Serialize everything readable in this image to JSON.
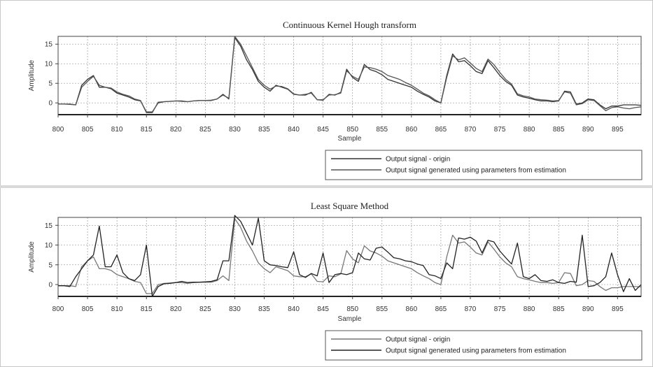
{
  "chart_data": [
    {
      "type": "line",
      "title": "Continuous Kernel Hough transform",
      "xlabel": "Sample",
      "ylabel": "Amplitude",
      "xlim": [
        800,
        899
      ],
      "ylim": [
        -3,
        17
      ],
      "x_ticks": [
        800,
        805,
        810,
        815,
        820,
        825,
        830,
        835,
        840,
        845,
        850,
        855,
        860,
        865,
        870,
        875,
        880,
        885,
        890,
        895
      ],
      "y_ticks": [
        0,
        5,
        10,
        15
      ],
      "grid": true,
      "legend_position": "bottom-right",
      "x": [
        800,
        801,
        802,
        803,
        804,
        805,
        806,
        807,
        808,
        809,
        810,
        811,
        812,
        813,
        814,
        815,
        816,
        817,
        818,
        819,
        820,
        821,
        822,
        823,
        824,
        825,
        826,
        827,
        828,
        829,
        830,
        831,
        832,
        833,
        834,
        835,
        836,
        837,
        838,
        839,
        840,
        841,
        842,
        843,
        844,
        845,
        846,
        847,
        848,
        849,
        850,
        851,
        852,
        853,
        854,
        855,
        856,
        857,
        858,
        859,
        860,
        861,
        862,
        863,
        864,
        865,
        866,
        867,
        868,
        869,
        870,
        871,
        872,
        873,
        874,
        875,
        876,
        877,
        878,
        879,
        880,
        881,
        882,
        883,
        884,
        885,
        886,
        887,
        888,
        889,
        890,
        891,
        892,
        893,
        894,
        895,
        896,
        897,
        898,
        899
      ],
      "series": [
        {
          "name": "Output signal - origin",
          "color": "#333333",
          "values": [
            -0.3,
            -0.3,
            -0.3,
            -0.5,
            4.5,
            6.0,
            7.0,
            4.0,
            4.0,
            3.6,
            2.5,
            2.0,
            1.5,
            0.8,
            0.5,
            -2.3,
            -2.3,
            0.0,
            0.3,
            0.4,
            0.5,
            0.5,
            0.3,
            0.5,
            0.6,
            0.6,
            0.6,
            1.0,
            2.2,
            1.0,
            16.7,
            14.5,
            11.0,
            8.5,
            5.5,
            4.0,
            3.0,
            4.5,
            4.0,
            3.5,
            2.2,
            2.0,
            2.0,
            2.7,
            0.8,
            0.7,
            2.2,
            2.0,
            2.7,
            8.6,
            6.5,
            5.5,
            9.8,
            8.5,
            8.0,
            7.2,
            6.0,
            5.5,
            5.0,
            4.5,
            4.0,
            3.0,
            2.2,
            1.5,
            0.5,
            0.0,
            7.0,
            12.5,
            10.5,
            10.8,
            9.5,
            8.0,
            7.5,
            10.8,
            9.0,
            7.0,
            5.5,
            4.5,
            2.0,
            1.5,
            1.2,
            0.8,
            0.5,
            0.5,
            0.3,
            0.5,
            3.0,
            2.8,
            -0.3,
            0.0,
            1.0,
            0.8,
            -0.5,
            -1.5,
            -0.8,
            -0.8,
            -0.5,
            -0.5,
            -0.5,
            -0.6
          ]
        },
        {
          "name": "Output signal generated using parameters from estimation",
          "color": "#555555",
          "values": [
            -0.3,
            -0.3,
            -0.4,
            -0.5,
            4.0,
            5.5,
            6.8,
            4.5,
            4.0,
            3.8,
            2.8,
            2.2,
            1.8,
            1.0,
            0.6,
            -2.5,
            -2.5,
            0.2,
            0.3,
            0.4,
            0.5,
            0.4,
            0.3,
            0.5,
            0.6,
            0.6,
            0.7,
            1.0,
            2.0,
            1.2,
            17.0,
            15.0,
            12.0,
            9.0,
            6.0,
            4.5,
            3.5,
            4.3,
            4.2,
            3.6,
            2.3,
            2.0,
            2.2,
            2.5,
            0.8,
            0.8,
            2.0,
            2.1,
            2.5,
            8.2,
            6.8,
            6.0,
            9.2,
            9.0,
            8.6,
            8.0,
            7.0,
            6.5,
            6.0,
            5.2,
            4.5,
            3.5,
            2.5,
            1.8,
            0.8,
            0.0,
            6.5,
            12.0,
            11.0,
            11.5,
            10.2,
            8.8,
            8.0,
            11.2,
            9.8,
            7.8,
            6.0,
            4.8,
            2.3,
            1.8,
            1.5,
            1.0,
            0.8,
            0.7,
            0.5,
            0.6,
            2.8,
            2.5,
            -0.5,
            -0.2,
            0.8,
            0.6,
            -0.7,
            -2.0,
            -1.2,
            -1.0,
            -1.3,
            -1.5,
            -1.2,
            -1.0
          ]
        }
      ]
    },
    {
      "type": "line",
      "title": "Least Square Method",
      "xlabel": "Sample",
      "ylabel": "Amplitude",
      "xlim": [
        800,
        899
      ],
      "ylim": [
        -3,
        17
      ],
      "x_ticks": [
        800,
        805,
        810,
        815,
        820,
        825,
        830,
        835,
        840,
        845,
        850,
        855,
        860,
        865,
        870,
        875,
        880,
        885,
        890,
        895
      ],
      "y_ticks": [
        0,
        5,
        10,
        15
      ],
      "grid": true,
      "legend_position": "bottom-right",
      "x": [
        800,
        801,
        802,
        803,
        804,
        805,
        806,
        807,
        808,
        809,
        810,
        811,
        812,
        813,
        814,
        815,
        816,
        817,
        818,
        819,
        820,
        821,
        822,
        823,
        824,
        825,
        826,
        827,
        828,
        829,
        830,
        831,
        832,
        833,
        834,
        835,
        836,
        837,
        838,
        839,
        840,
        841,
        842,
        843,
        844,
        845,
        846,
        847,
        848,
        849,
        850,
        851,
        852,
        853,
        854,
        855,
        856,
        857,
        858,
        859,
        860,
        861,
        862,
        863,
        864,
        865,
        866,
        867,
        868,
        869,
        870,
        871,
        872,
        873,
        874,
        875,
        876,
        877,
        878,
        879,
        880,
        881,
        882,
        883,
        884,
        885,
        886,
        887,
        888,
        889,
        890,
        891,
        892,
        893,
        894,
        895,
        896,
        897,
        898,
        899
      ],
      "series": [
        {
          "name": "Output signal - origin",
          "color": "#777777",
          "values": [
            -0.3,
            -0.3,
            -0.3,
            -0.5,
            4.5,
            6.0,
            7.0,
            4.0,
            4.0,
            3.6,
            2.5,
            2.0,
            1.5,
            0.8,
            0.5,
            -2.3,
            -2.3,
            0.0,
            0.3,
            0.4,
            0.5,
            0.5,
            0.3,
            0.5,
            0.6,
            0.6,
            0.6,
            1.0,
            2.2,
            1.0,
            16.7,
            14.5,
            11.0,
            8.5,
            5.5,
            4.0,
            3.0,
            4.5,
            4.0,
            3.5,
            2.2,
            2.0,
            2.0,
            2.7,
            0.8,
            0.7,
            2.2,
            2.0,
            2.7,
            8.6,
            6.5,
            5.5,
            9.8,
            8.5,
            8.0,
            7.2,
            6.0,
            5.5,
            5.0,
            4.5,
            4.0,
            3.0,
            2.2,
            1.5,
            0.5,
            0.0,
            7.0,
            12.5,
            10.5,
            10.8,
            9.5,
            8.0,
            7.5,
            10.8,
            9.0,
            7.0,
            5.5,
            4.5,
            2.0,
            1.5,
            1.2,
            0.8,
            0.5,
            0.5,
            0.3,
            0.5,
            3.0,
            2.8,
            -0.3,
            0.0,
            1.0,
            0.8,
            -0.5,
            -1.5,
            -0.8,
            -0.8,
            -0.5,
            -0.5,
            -0.5,
            -0.6
          ]
        },
        {
          "name": "Output signal generated using parameters from estimation",
          "color": "#222222",
          "values": [
            -0.3,
            -0.3,
            -0.5,
            2.0,
            4.0,
            6.0,
            7.5,
            14.8,
            4.5,
            4.5,
            7.5,
            3.0,
            1.5,
            1.0,
            2.5,
            10.0,
            -3.0,
            -0.5,
            0.2,
            0.3,
            0.5,
            0.8,
            0.5,
            0.6,
            0.6,
            0.7,
            0.8,
            1.2,
            6.0,
            6.0,
            17.5,
            16.0,
            13.0,
            10.0,
            16.8,
            6.0,
            5.0,
            4.8,
            4.5,
            4.3,
            8.3,
            2.5,
            1.8,
            2.8,
            2.2,
            8.0,
            0.5,
            2.5,
            2.8,
            2.5,
            3.0,
            8.0,
            6.5,
            6.2,
            9.2,
            9.5,
            8.2,
            6.8,
            6.5,
            6.0,
            5.8,
            5.2,
            4.8,
            2.5,
            2.2,
            1.5,
            5.5,
            4.0,
            11.8,
            11.5,
            12.0,
            11.0,
            8.0,
            11.2,
            10.8,
            8.5,
            6.8,
            5.2,
            10.5,
            2.0,
            1.5,
            2.5,
            1.0,
            0.8,
            1.2,
            0.5,
            0.3,
            0.8,
            0.6,
            12.5,
            -0.5,
            -0.3,
            0.5,
            2.0,
            8.0,
            2.5,
            -1.8,
            1.5,
            -1.5,
            0.0
          ]
        }
      ]
    }
  ]
}
